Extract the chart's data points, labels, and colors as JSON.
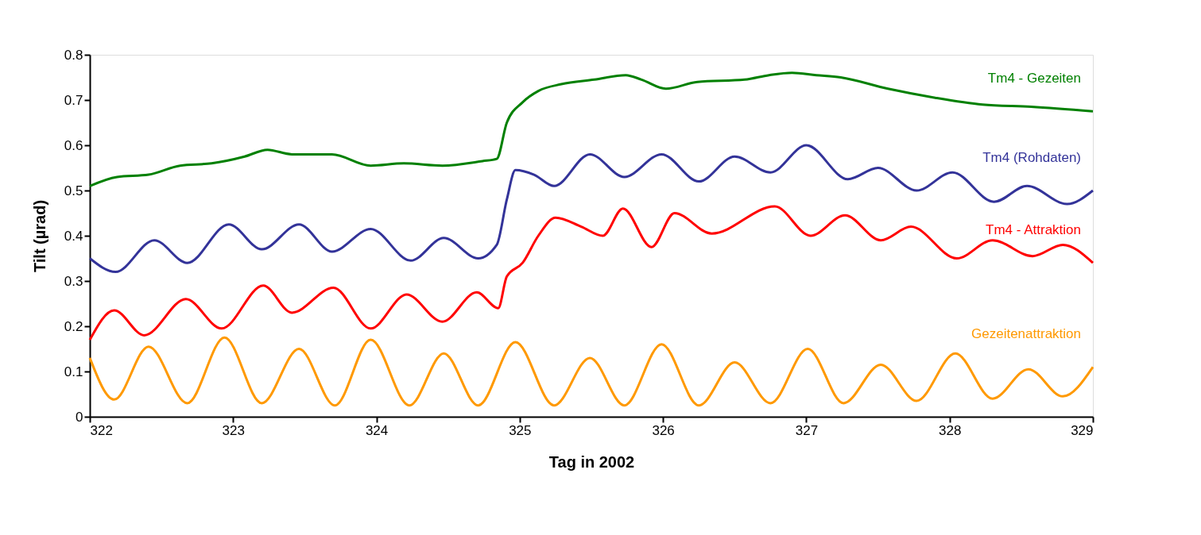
{
  "chart_data": {
    "type": "line",
    "xlabel": "Tag in 2002",
    "ylabel": "Tilt (µrad)",
    "xlim": [
      322,
      329
    ],
    "xticks": [
      322,
      323,
      324,
      325,
      326,
      327,
      328,
      329
    ],
    "ylim": [
      0,
      0.8
    ],
    "yticks": [
      0,
      0.1,
      0.2,
      0.3,
      0.4,
      0.5,
      0.6,
      0.7,
      0.8
    ],
    "grid": false,
    "legend": false,
    "marker": "none",
    "line_style": "solid",
    "series": [
      {
        "name": "Tm4 - Gezeiten",
        "color": "#008000",
        "x": [
          322.0,
          322.19,
          322.41,
          322.63,
          322.85,
          323.08,
          323.24,
          323.41,
          323.69,
          323.96,
          324.19,
          324.46,
          324.74,
          324.84,
          324.91,
          325.02,
          325.13,
          325.29,
          325.52,
          325.74,
          325.85,
          326.02,
          326.24,
          326.57,
          326.74,
          326.9,
          327.07,
          327.24,
          327.57,
          327.9,
          328.23,
          328.57,
          329.0
        ],
        "values": [
          0.51,
          0.53,
          0.535,
          0.555,
          0.56,
          0.575,
          0.59,
          0.58,
          0.58,
          0.555,
          0.56,
          0.555,
          0.565,
          0.57,
          0.65,
          0.695,
          0.72,
          0.735,
          0.745,
          0.755,
          0.745,
          0.725,
          0.74,
          0.745,
          0.755,
          0.76,
          0.755,
          0.75,
          0.725,
          0.705,
          0.69,
          0.685,
          0.675
        ]
      },
      {
        "name": "Tm4 (Rohdaten)",
        "color": "#333399",
        "x": [
          322.0,
          322.18,
          322.45,
          322.68,
          322.97,
          323.2,
          323.46,
          323.69,
          323.96,
          324.24,
          324.47,
          324.71,
          324.84,
          324.91,
          324.97,
          325.1,
          325.24,
          325.49,
          325.73,
          325.99,
          326.25,
          326.5,
          326.75,
          327.0,
          327.29,
          327.5,
          327.77,
          328.02,
          328.31,
          328.54,
          328.82,
          329.0
        ],
        "values": [
          0.35,
          0.32,
          0.39,
          0.34,
          0.425,
          0.37,
          0.425,
          0.365,
          0.415,
          0.345,
          0.395,
          0.35,
          0.38,
          0.48,
          0.545,
          0.535,
          0.51,
          0.58,
          0.53,
          0.58,
          0.52,
          0.575,
          0.54,
          0.6,
          0.525,
          0.55,
          0.5,
          0.54,
          0.475,
          0.51,
          0.47,
          0.5
        ]
      },
      {
        "name": "Tm4 - Attraktion",
        "color": "#ff0000",
        "x": [
          322.0,
          322.17,
          322.38,
          322.67,
          322.92,
          323.21,
          323.41,
          323.7,
          323.96,
          324.21,
          324.46,
          324.7,
          324.85,
          324.91,
          325.02,
          325.13,
          325.25,
          325.43,
          325.58,
          325.72,
          325.92,
          326.08,
          326.34,
          326.78,
          327.03,
          327.27,
          327.52,
          327.73,
          328.05,
          328.3,
          328.58,
          328.79,
          329.0
        ],
        "values": [
          0.17,
          0.235,
          0.18,
          0.26,
          0.195,
          0.29,
          0.23,
          0.285,
          0.195,
          0.27,
          0.21,
          0.275,
          0.24,
          0.31,
          0.34,
          0.4,
          0.44,
          0.42,
          0.4,
          0.46,
          0.375,
          0.45,
          0.405,
          0.465,
          0.4,
          0.445,
          0.39,
          0.42,
          0.35,
          0.39,
          0.355,
          0.38,
          0.34
        ]
      },
      {
        "name": "Gezeitenattraktion",
        "color": "#ff9900",
        "x": [
          322.0,
          322.17,
          322.41,
          322.68,
          322.94,
          323.2,
          323.46,
          323.71,
          323.96,
          324.23,
          324.47,
          324.71,
          324.97,
          325.24,
          325.49,
          325.73,
          325.99,
          326.25,
          326.5,
          326.75,
          327.01,
          327.26,
          327.52,
          327.77,
          328.04,
          328.3,
          328.55,
          328.79,
          329.0
        ],
        "values": [
          0.13,
          0.038,
          0.155,
          0.03,
          0.175,
          0.03,
          0.15,
          0.025,
          0.17,
          0.025,
          0.14,
          0.025,
          0.165,
          0.025,
          0.13,
          0.025,
          0.16,
          0.025,
          0.12,
          0.03,
          0.15,
          0.03,
          0.115,
          0.035,
          0.14,
          0.04,
          0.105,
          0.045,
          0.11
        ]
      }
    ]
  }
}
